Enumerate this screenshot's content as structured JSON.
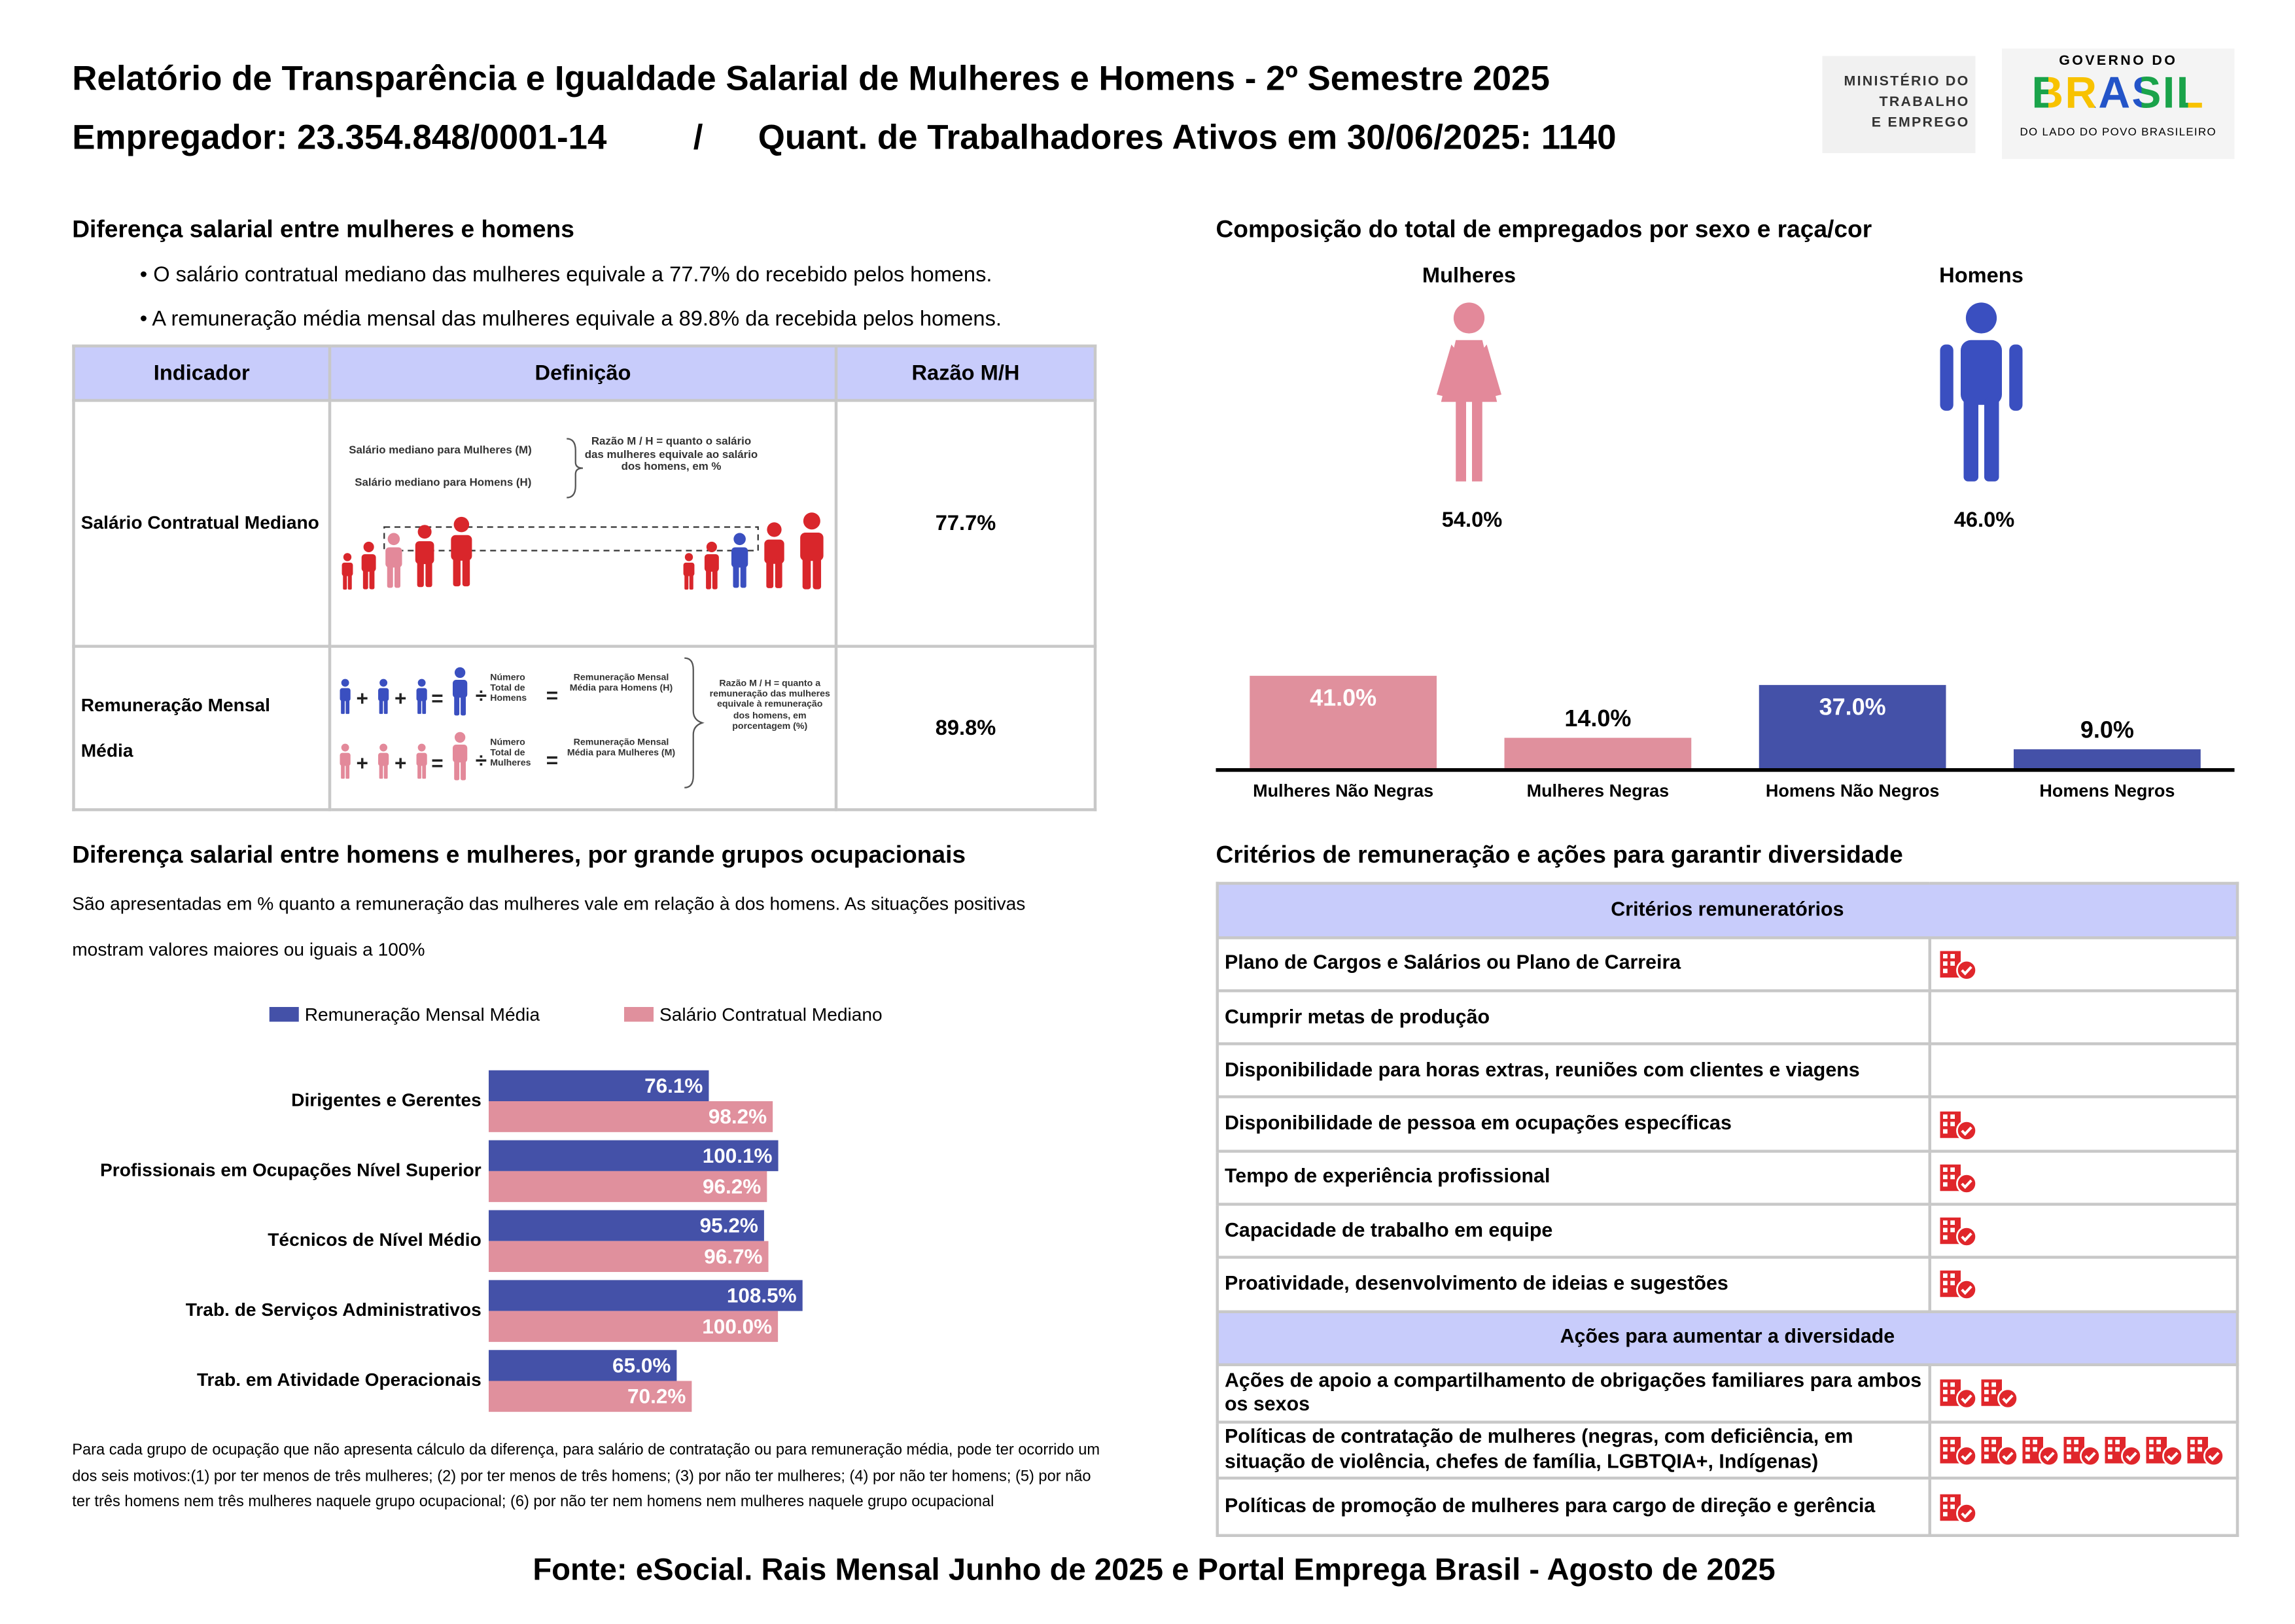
{
  "header": {
    "title": "Relatório de Transparência e Igualdade Salarial de Mulheres e Homens - 2º Semestre 2025",
    "employer": "Empregador: 23.354.848/0001-14",
    "separator": "/",
    "workers": "Quant. de Trabalhadores Ativos em 30/06/2025: 1140"
  },
  "logos": {
    "ministry": [
      "MINISTÉRIO DO",
      "TRABALHO",
      "E EMPREGO"
    ],
    "government_top": "GOVERNO DO",
    "government_name": "BRASIL",
    "government_slogan": "DO LADO DO POVO BRASILEIRO"
  },
  "salary_gap": {
    "title": "Diferença salarial entre mulheres e homens",
    "bullets": [
      "• O salário contratual mediano das mulheres equivale a 77.7% do recebido pelos homens.",
      "• A remuneração média mensal das mulheres equivale a 89.8% da recebida pelos homens."
    ],
    "table": {
      "headers": [
        "Indicador",
        "Definição",
        "Razão M/H"
      ],
      "rows": [
        [
          "Salário Contratual Mediano",
          "77.7%"
        ],
        [
          "Remuneração Mensal Média",
          "89.8%"
        ]
      ]
    },
    "diagram_median": {
      "women": "Salário mediano para Mulheres (M)",
      "men": "Salário mediano para Homens (H)",
      "ratio": "Razão M / H = quanto o salário das mulheres equivale ao salário dos homens, em %"
    },
    "diagram_mean": {
      "men_count": "Número Total de Homens",
      "men_pay": "Remuneração Mensal Média para Homens (H)",
      "women_count": "Número Total de Mulheres",
      "women_pay": "Remuneração Mensal Média para Mulheres (M)",
      "ratio": "Razão M / H = quanto a remuneração das mulheres equivale à remuneração dos homens, em porcentagem (%)"
    }
  },
  "composition": {
    "title": "Composição do total de empregados por sexo e raça/cor",
    "categories": [
      "Mulheres",
      "Homens"
    ],
    "values": [
      54,
      46
    ],
    "value_labels": [
      "54.0%",
      "46.0%"
    ],
    "colors": [
      "#e3899a",
      "#3a4fc0"
    ]
  },
  "chart_data": [
    {
      "type": "bar",
      "categories": [
        "Mulheres Não Negras",
        "Mulheres Negras",
        "Homens Não Negros",
        "Homens Negros"
      ],
      "values": [
        41,
        14,
        37,
        9
      ],
      "value_labels": [
        "41.0%",
        "14.0%",
        "37.0%",
        "9.0%"
      ],
      "colors": [
        "#e0909d",
        "#e0909d",
        "#4451a8",
        "#4451a8"
      ]
    },
    {
      "type": "barh",
      "title": "Diferença salarial entre homens e mulheres, por grande grupos ocupacionais",
      "subtitle": [
        "São apresentadas em % quanto a remuneração das mulheres vale em relação à dos homens. As situações positivas",
        "mostram valores maiores ou iguais a 100%"
      ],
      "categories": [
        "Dirigentes e Gerentes",
        "Profissionais em Ocupações Nível Superior",
        "Técnicos de Nível Médio",
        "Trab. de Serviços Administrativos",
        "Trab. em Atividade Operacionais"
      ],
      "series": [
        {
          "name": "Remuneração Mensal Média",
          "color": "#4451a8",
          "values": [
            76.1,
            100.1,
            95.2,
            108.5,
            65
          ],
          "value_labels": [
            "76.1%",
            "100.1%",
            "95.2%",
            "108.5%",
            "65.0%"
          ]
        },
        {
          "name": "Salário Contratual Mediano",
          "color": "#e0909d",
          "values": [
            98.2,
            96.2,
            96.7,
            100,
            70.2
          ],
          "value_labels": [
            "98.2%",
            "96.2%",
            "96.7%",
            "100.0%",
            "70.2%"
          ]
        }
      ],
      "note": "Para cada grupo de ocupação que não apresenta cálculo da diferença, para salário de contratação ou para remuneração média, pode ter ocorrido um dos seis motivos:(1) por ter menos de três mulheres; (2) por ter menos de três homens; (3) por não ter mulheres; (4) por não ter homens; (5) por não ter três homens nem três mulheres naquele grupo ocupacional; (6) por não ter nem homens nem mulheres naquele grupo ocupacional"
    }
  ],
  "criteria": {
    "title": "Critérios de remuneração e ações para garantir diversidade",
    "sections": [
      {
        "heading": "Critérios remuneratórios",
        "rows": [
          {
            "label": "Plano de Cargos e Salários ou Plano de Carreira",
            "icons": 1
          },
          {
            "label": "Cumprir metas de produção",
            "icons": 0
          },
          {
            "label": "Disponibilidade para horas extras, reuniões com clientes e viagens",
            "icons": 0
          },
          {
            "label": "Disponibilidade de pessoa em ocupações específicas",
            "icons": 1
          },
          {
            "label": "Tempo de experiência profissional",
            "icons": 1
          },
          {
            "label": "Capacidade de trabalho em equipe",
            "icons": 1
          },
          {
            "label": "Proatividade, desenvolvimento de ideias e sugestões",
            "icons": 1
          }
        ]
      },
      {
        "heading": "Ações para aumentar a diversidade",
        "rows": [
          {
            "label": "Ações de apoio a compartilhamento de obrigações familiares para ambos os sexos",
            "icons": 2
          },
          {
            "label": "Políticas de contratação de mulheres (negras, com deficiência, em situação de violência, chefes de família, LGBTQIA+, Indígenas)",
            "icons": 7
          },
          {
            "label": "Políticas de promoção de mulheres para cargo de direção e gerência",
            "icons": 1
          }
        ]
      }
    ]
  },
  "footer": "Fonte: eSocial. Rais Mensal Junho de 2025 e Portal Emprega Brasil - Agosto de 2025"
}
